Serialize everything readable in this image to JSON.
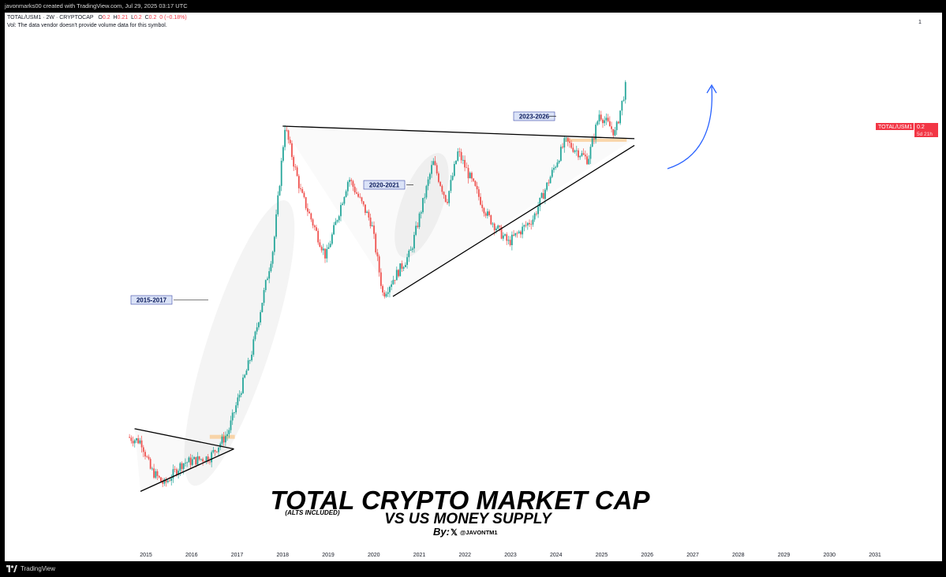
{
  "header": {
    "credit": "javonmarks00 created with TradingView.com, Jul 29, 2025 03:17 UTC"
  },
  "legend": {
    "symbol": "TOTAL/USM1 · 2W · CRYPTOCAP",
    "open_label": "O",
    "open": "0.2",
    "high_label": "H",
    "high": "0.21",
    "low_label": "L",
    "low": "0.2",
    "close_label": "C",
    "close": "0.2",
    "change": "0 (−0.18%)",
    "vol_note": "Vol: The data vendor doesn't provide volume data for this symbol.",
    "right_marker": "1"
  },
  "price_badge": {
    "symbol": "TOTAL/USM1",
    "value": "0.2",
    "countdown": "5d 21h",
    "color": "#f23645"
  },
  "annotations": {
    "period1": "2015-2017",
    "period2": "2020-2021",
    "period3": "2023-2026",
    "title": "TOTAL CRYPTO MARKET CAP",
    "note": "(ALTS INCLUDED)",
    "subtitle": "VS US MONEY SUPPLY",
    "by": "By:",
    "handle": "@JAVONTM1"
  },
  "footer": {
    "brand": "TradingView"
  },
  "colors": {
    "up": "#26a69a",
    "down": "#ef5350",
    "arrow": "#2962ff",
    "zone": "#f9c98f",
    "label_bg": "#dbe3f7"
  },
  "chart_data": {
    "type": "candlestick",
    "title": "TOTAL CRYPTO MARKET CAP",
    "subtitle": "VS US MONEY SUPPLY",
    "x_tick_labels": [
      "2015",
      "2016",
      "2017",
      "2018",
      "2019",
      "2020",
      "2021",
      "2022",
      "2023",
      "2024",
      "2025",
      "2026",
      "2027",
      "2028",
      "2029",
      "2030",
      "2031"
    ],
    "xlim": [
      2014.65,
      2031.1
    ],
    "y_scale": "log",
    "last_value": 0.2,
    "approx_path": [
      {
        "x": 2014.6,
        "y": 0.0017
      },
      {
        "x": 2014.9,
        "y": 0.0016
      },
      {
        "x": 2015.1,
        "y": 0.0011
      },
      {
        "x": 2015.4,
        "y": 0.0009
      },
      {
        "x": 2015.8,
        "y": 0.0012
      },
      {
        "x": 2016.4,
        "y": 0.0013
      },
      {
        "x": 2016.8,
        "y": 0.0018
      },
      {
        "x": 2017.3,
        "y": 0.005
      },
      {
        "x": 2017.8,
        "y": 0.022
      },
      {
        "x": 2018.05,
        "y": 0.11
      },
      {
        "x": 2018.4,
        "y": 0.045
      },
      {
        "x": 2018.95,
        "y": 0.019
      },
      {
        "x": 2019.45,
        "y": 0.055
      },
      {
        "x": 2019.95,
        "y": 0.03
      },
      {
        "x": 2020.2,
        "y": 0.0115
      },
      {
        "x": 2020.8,
        "y": 0.02
      },
      {
        "x": 2021.3,
        "y": 0.068
      },
      {
        "x": 2021.6,
        "y": 0.04
      },
      {
        "x": 2021.85,
        "y": 0.078
      },
      {
        "x": 2022.5,
        "y": 0.033
      },
      {
        "x": 2022.95,
        "y": 0.023
      },
      {
        "x": 2023.5,
        "y": 0.032
      },
      {
        "x": 2024.2,
        "y": 0.09
      },
      {
        "x": 2024.7,
        "y": 0.07
      },
      {
        "x": 2024.95,
        "y": 0.13
      },
      {
        "x": 2025.3,
        "y": 0.1
      },
      {
        "x": 2025.55,
        "y": 0.2
      }
    ],
    "patterns": [
      {
        "name": "symmetrical-triangle",
        "period": "2015-2017"
      },
      {
        "name": "symmetrical-triangle",
        "period": "2020-2021"
      },
      {
        "name": "symmetrical-triangle",
        "period": "2023-2026"
      }
    ],
    "grid": false
  }
}
